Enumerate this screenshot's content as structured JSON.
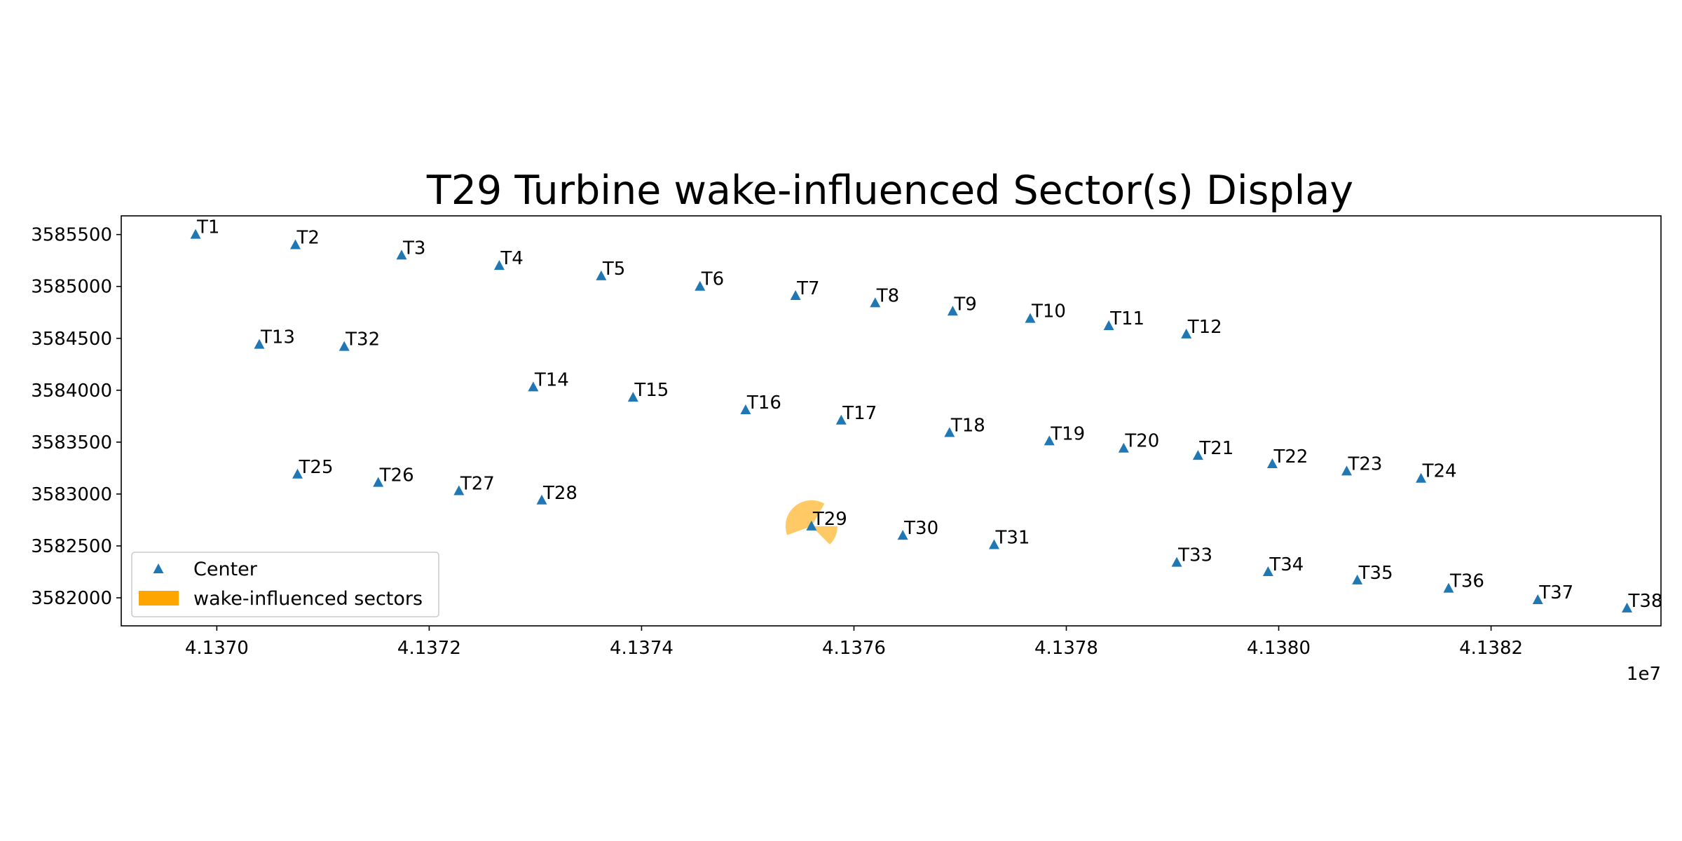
{
  "chart_data": {
    "type": "scatter",
    "title": "T29 Turbine wake-influenced Sector(s) Display",
    "xlabel": "",
    "ylabel": "",
    "x_offset_label": "1e7",
    "xlim": [
      4.13691,
      4.13836
    ],
    "ylim": [
      3581730,
      3585680
    ],
    "x_ticks": [
      4.137,
      4.1372,
      4.1374,
      4.1376,
      4.1378,
      4.138,
      4.1382
    ],
    "x_tick_labels": [
      "4.1370",
      "4.1372",
      "4.1374",
      "4.1376",
      "4.1378",
      "4.1380",
      "4.1382"
    ],
    "y_ticks": [
      3582000,
      3582500,
      3583000,
      3583500,
      3584000,
      3584500,
      3585000,
      3585500
    ],
    "y_tick_labels": [
      "3582000",
      "3582500",
      "3583000",
      "3583500",
      "3584000",
      "3584500",
      "3585000",
      "3585500"
    ],
    "grid": false,
    "legend_position": "lower-left",
    "legend": [
      {
        "label": "Center",
        "marker": "triangle",
        "color": "#1f77b4"
      },
      {
        "label": "wake-influenced sectors",
        "marker": "patch",
        "color": "#ffa500"
      }
    ],
    "marker_color": "#1f77b4",
    "sector_color": "#ffa500",
    "points": [
      {
        "label": "T1",
        "x": 4.13698,
        "y": 3585500
      },
      {
        "label": "T2",
        "x": 4.137074,
        "y": 3585400
      },
      {
        "label": "T3",
        "x": 4.137174,
        "y": 3585300
      },
      {
        "label": "T4",
        "x": 4.137266,
        "y": 3585200
      },
      {
        "label": "T5",
        "x": 4.137362,
        "y": 3585100
      },
      {
        "label": "T6",
        "x": 4.137455,
        "y": 3585000
      },
      {
        "label": "T7",
        "x": 4.137545,
        "y": 3584910
      },
      {
        "label": "T8",
        "x": 4.13762,
        "y": 3584840
      },
      {
        "label": "T9",
        "x": 4.137693,
        "y": 3584760
      },
      {
        "label": "T10",
        "x": 4.137766,
        "y": 3584690
      },
      {
        "label": "T11",
        "x": 4.13784,
        "y": 3584620
      },
      {
        "label": "T12",
        "x": 4.137913,
        "y": 3584540
      },
      {
        "label": "T13",
        "x": 4.13704,
        "y": 3584440
      },
      {
        "label": "T32",
        "x": 4.13712,
        "y": 3584420
      },
      {
        "label": "T14",
        "x": 4.137298,
        "y": 3584030
      },
      {
        "label": "T15",
        "x": 4.137392,
        "y": 3583930
      },
      {
        "label": "T16",
        "x": 4.137498,
        "y": 3583810
      },
      {
        "label": "T17",
        "x": 4.137588,
        "y": 3583710
      },
      {
        "label": "T18",
        "x": 4.13769,
        "y": 3583590
      },
      {
        "label": "T19",
        "x": 4.137784,
        "y": 3583510
      },
      {
        "label": "T20",
        "x": 4.137854,
        "y": 3583440
      },
      {
        "label": "T21",
        "x": 4.137924,
        "y": 3583370
      },
      {
        "label": "T22",
        "x": 4.137994,
        "y": 3583290
      },
      {
        "label": "T23",
        "x": 4.138064,
        "y": 3583220
      },
      {
        "label": "T24",
        "x": 4.138134,
        "y": 3583150
      },
      {
        "label": "T25",
        "x": 4.137076,
        "y": 3583190
      },
      {
        "label": "T26",
        "x": 4.137152,
        "y": 3583110
      },
      {
        "label": "T27",
        "x": 4.137228,
        "y": 3583030
      },
      {
        "label": "T28",
        "x": 4.137306,
        "y": 3582940
      },
      {
        "label": "T29",
        "x": 4.13756,
        "y": 3582690
      },
      {
        "label": "T30",
        "x": 4.137646,
        "y": 3582600
      },
      {
        "label": "T31",
        "x": 4.137732,
        "y": 3582510
      },
      {
        "label": "T33",
        "x": 4.137904,
        "y": 3582340
      },
      {
        "label": "T34",
        "x": 4.13799,
        "y": 3582250
      },
      {
        "label": "T35",
        "x": 4.138074,
        "y": 3582170
      },
      {
        "label": "T36",
        "x": 4.13816,
        "y": 3582090
      },
      {
        "label": "T37",
        "x": 4.138244,
        "y": 3581980
      },
      {
        "label": "T38",
        "x": 4.138328,
        "y": 3581900
      }
    ],
    "sectors": [
      {
        "center": "T29",
        "radius": 250,
        "from_deg": 60,
        "to_deg": 200
      },
      {
        "center": "T29",
        "radius": 250,
        "from_deg": 315,
        "to_deg": 360
      }
    ]
  }
}
